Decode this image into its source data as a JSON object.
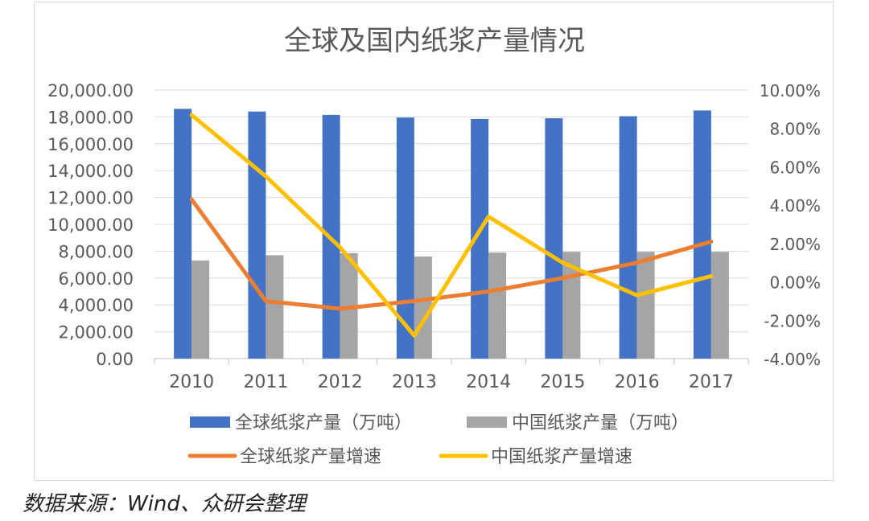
{
  "chart_data": {
    "type": "bar",
    "title": "全球及国内纸浆产量情况",
    "categories": [
      "2010",
      "2011",
      "2012",
      "2013",
      "2014",
      "2015",
      "2016",
      "2017"
    ],
    "series": [
      {
        "name": "全球纸浆产量（万吨）",
        "type": "bar",
        "axis": "left",
        "color": "#4472C4",
        "values": [
          18600,
          18400,
          18150,
          17950,
          17850,
          17900,
          18050,
          18480
        ]
      },
      {
        "name": "中国纸浆产量（万吨）",
        "type": "bar",
        "axis": "left",
        "color": "#A5A5A5",
        "values": [
          7300,
          7700,
          7850,
          7600,
          7900,
          7950,
          7950,
          7950
        ]
      },
      {
        "name": "全球纸浆产量增速",
        "type": "line",
        "axis": "right",
        "color": "#ED7D31",
        "values": [
          4.3,
          -1.0,
          -1.4,
          -1.0,
          -0.5,
          0.2,
          1.0,
          2.1
        ]
      },
      {
        "name": "中国纸浆产量增速",
        "type": "line",
        "axis": "right",
        "color": "#FFC000",
        "values": [
          8.7,
          5.5,
          1.8,
          -2.8,
          3.4,
          1.0,
          -0.7,
          0.3
        ]
      }
    ],
    "y_left": {
      "min": 0,
      "max": 20000,
      "step": 2000,
      "tick_labels": [
        "0.00",
        "2,000.00",
        "4,000.00",
        "6,000.00",
        "8,000.00",
        "10,000.00",
        "12,000.00",
        "14,000.00",
        "16,000.00",
        "18,000.00",
        "20,000.00"
      ]
    },
    "y_right": {
      "min": -4,
      "max": 10,
      "step": 2,
      "tick_labels": [
        "-4.00%",
        "-2.00%",
        "0.00%",
        "2.00%",
        "4.00%",
        "6.00%",
        "8.00%",
        "10.00%"
      ]
    },
    "grid": true,
    "legend_position": "bottom"
  },
  "source_note": "数据来源：Wind、众研会整理"
}
